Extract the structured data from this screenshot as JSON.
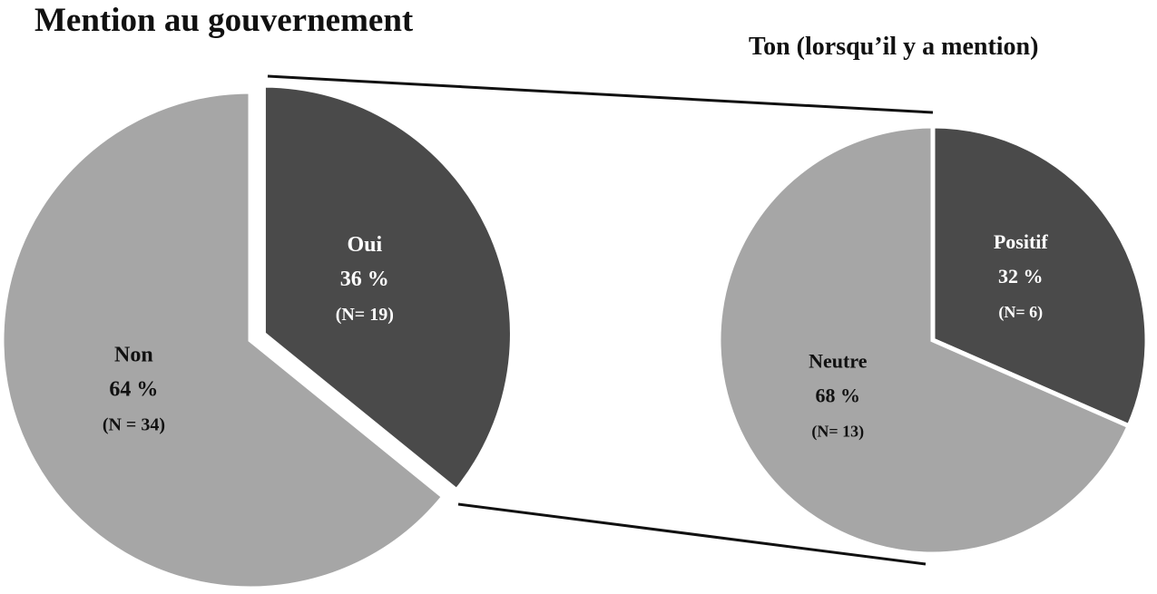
{
  "chart_data": [
    {
      "type": "pie",
      "title": "Mention au gouvernement",
      "slices": [
        {
          "name": "Oui",
          "percent_label": "36 %",
          "n_label": "(N= 19)",
          "value": 19,
          "color": "#4a4a4a",
          "text_color": "#ffffff",
          "exploded": true
        },
        {
          "name": "Non",
          "percent_label": "64 %",
          "n_label": "(N = 34)",
          "value": 34,
          "color": "#a6a6a6",
          "text_color": "#111111",
          "exploded": false
        }
      ]
    },
    {
      "type": "pie",
      "title": "Ton (lorsqu’il y a mention)",
      "slices": [
        {
          "name": "Positif",
          "percent_label": "32 %",
          "n_label": "(N= 6)",
          "value": 6,
          "color": "#4a4a4a",
          "text_color": "#ffffff",
          "exploded": false
        },
        {
          "name": "Neutre",
          "percent_label": "68 %",
          "n_label": "(N= 13)",
          "value": 13,
          "color": "#a6a6a6",
          "text_color": "#111111",
          "exploded": false
        }
      ]
    }
  ]
}
